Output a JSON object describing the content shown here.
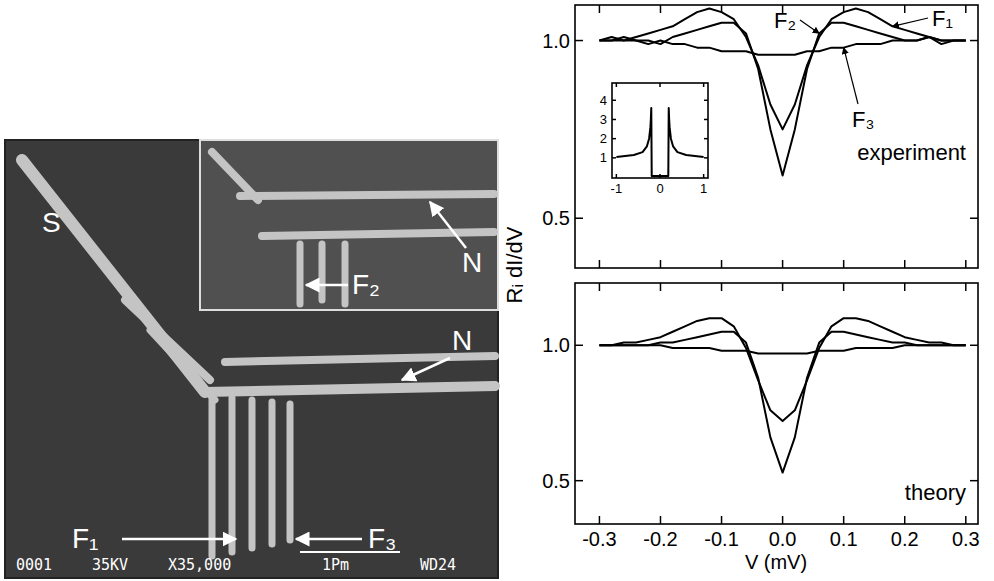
{
  "image": {
    "labels": [
      {
        "text": "S"
      },
      {
        "text": "F₁"
      },
      {
        "text": "F₃"
      },
      {
        "text": "N"
      }
    ],
    "inset_labels": [
      {
        "text": "F₂"
      },
      {
        "text": "N"
      }
    ],
    "footer": [
      "0001",
      "35KV",
      "X35,000",
      "1Pm",
      "WD24"
    ]
  },
  "chart_data": [
    {
      "type": "line",
      "title": "experiment",
      "y_label": "Rᵢ dI/dV",
      "x": [
        -0.3,
        -0.28,
        -0.26,
        -0.24,
        -0.22,
        -0.2,
        -0.18,
        -0.16,
        -0.14,
        -0.12,
        -0.1,
        -0.08,
        -0.06,
        -0.04,
        -0.02,
        0,
        0.02,
        0.04,
        0.06,
        0.08,
        0.1,
        0.12,
        0.14,
        0.16,
        0.18,
        0.2,
        0.22,
        0.24,
        0.26,
        0.28,
        0.3
      ],
      "series": [
        {
          "name": "F₁",
          "color": "#000000",
          "values": [
            1.0,
            1.01,
            1.0,
            1.01,
            1.02,
            1.03,
            1.04,
            1.06,
            1.08,
            1.09,
            1.08,
            1.06,
            1.01,
            0.93,
            0.82,
            0.75,
            0.82,
            0.93,
            1.01,
            1.06,
            1.08,
            1.09,
            1.08,
            1.06,
            1.04,
            1.03,
            1.02,
            1.01,
            0.99,
            1.0,
            1.0
          ]
        },
        {
          "name": "F₂",
          "color": "#000000",
          "values": [
            1.0,
            1.0,
            1.0,
            1.0,
            1.0,
            0.99,
            1.01,
            1.02,
            1.03,
            1.04,
            1.05,
            1.05,
            1.02,
            0.92,
            0.75,
            0.62,
            0.75,
            0.92,
            1.02,
            1.05,
            1.05,
            1.04,
            1.03,
            1.02,
            1.01,
            1.0,
            1.0,
            1.01,
            1.0,
            1.0,
            1.0
          ]
        },
        {
          "name": "F₃",
          "color": "#000000",
          "values": [
            1.0,
            1.0,
            1.01,
            1.0,
            0.99,
            1.0,
            0.99,
            0.99,
            0.98,
            0.98,
            0.97,
            0.97,
            0.97,
            0.96,
            0.96,
            0.96,
            0.96,
            0.97,
            0.97,
            0.98,
            0.98,
            0.99,
            0.99,
            0.99,
            1.0,
            1.0,
            1.0,
            1.01,
            1.0,
            1.0,
            1.0
          ]
        }
      ],
      "xlim": [
        -0.34,
        0.32
      ],
      "ylim": [
        0.36,
        1.1
      ],
      "xticks": [
        -0.3,
        -0.2,
        -0.1,
        {
          "value": 0,
          "label": "0.0"
        },
        0.1,
        0.2,
        0.3
      ],
      "yticks": [
        0.5,
        {
          "value": 1,
          "label": "1.0"
        }
      ],
      "tick_labels": "y"
    },
    {
      "type": "line",
      "x": [
        -1,
        -0.8,
        -0.6,
        -0.4,
        -0.3,
        -0.25,
        -0.22,
        -0.21,
        -0.2,
        -0.19,
        -0.05,
        0,
        0.05,
        0.19,
        0.2,
        0.21,
        0.22,
        0.25,
        0.3,
        0.4,
        0.6,
        0.8,
        1
      ],
      "series": [
        {
          "color": "#000000",
          "values": [
            1.05,
            1.1,
            1.15,
            1.3,
            1.6,
            2.0,
            2.6,
            3.0,
            3.6,
            0.05,
            0.05,
            0.05,
            0.05,
            0.05,
            3.6,
            3.0,
            2.6,
            2.0,
            1.6,
            1.3,
            1.15,
            1.1,
            1.05
          ]
        }
      ],
      "xlim": [
        -1.1,
        1.1
      ],
      "ylim": [
        -0.05,
        4.9
      ],
      "xticks": [
        -1,
        0,
        1
      ],
      "yticks": [
        1,
        2,
        3,
        4
      ]
    },
    {
      "type": "line",
      "title": "theory",
      "x_label": "V (mV)",
      "x": [
        -0.3,
        -0.28,
        -0.26,
        -0.24,
        -0.22,
        -0.2,
        -0.18,
        -0.16,
        -0.14,
        -0.12,
        -0.1,
        -0.08,
        -0.06,
        -0.04,
        -0.02,
        0,
        0.02,
        0.04,
        0.06,
        0.08,
        0.1,
        0.12,
        0.14,
        0.16,
        0.18,
        0.2,
        0.22,
        0.24,
        0.26,
        0.28,
        0.3
      ],
      "series": [
        {
          "color": "#000000",
          "values": [
            1.0,
            1.0,
            1.01,
            1.01,
            1.02,
            1.03,
            1.05,
            1.07,
            1.09,
            1.1,
            1.1,
            1.07,
            0.99,
            0.87,
            0.76,
            0.72,
            0.76,
            0.87,
            0.99,
            1.07,
            1.1,
            1.1,
            1.09,
            1.07,
            1.05,
            1.03,
            1.02,
            1.01,
            1.01,
            1.0,
            1.0
          ]
        },
        {
          "color": "#000000",
          "values": [
            1.0,
            1.0,
            1.0,
            1.0,
            1.0,
            1.01,
            1.01,
            1.02,
            1.03,
            1.04,
            1.05,
            1.05,
            1.01,
            0.88,
            0.66,
            0.53,
            0.66,
            0.88,
            1.01,
            1.05,
            1.05,
            1.04,
            1.03,
            1.02,
            1.01,
            1.01,
            1.0,
            1.0,
            1.0,
            1.0,
            1.0
          ]
        },
        {
          "color": "#000000",
          "values": [
            1.0,
            1.0,
            1.0,
            1.0,
            1.0,
            1.0,
            0.99,
            0.99,
            0.99,
            0.99,
            0.98,
            0.98,
            0.98,
            0.97,
            0.97,
            0.97,
            0.97,
            0.97,
            0.98,
            0.98,
            0.98,
            0.99,
            0.99,
            0.99,
            0.99,
            1.0,
            1.0,
            1.0,
            1.0,
            1.0,
            1.0
          ]
        }
      ],
      "xlim": [
        -0.34,
        0.32
      ],
      "ylim": [
        0.34,
        1.23
      ],
      "xticks": [
        -0.3,
        -0.2,
        -0.1,
        {
          "value": 0,
          "label": "0.0"
        },
        0.1,
        0.2,
        0.3
      ],
      "yticks": [
        0.5,
        {
          "value": 1,
          "label": "1.0"
        }
      ]
    }
  ]
}
